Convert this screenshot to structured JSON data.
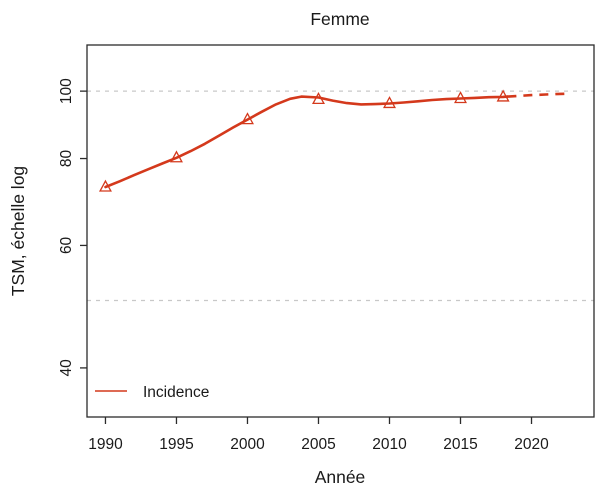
{
  "figure": {
    "title": "Femme",
    "xlabel": "Année",
    "ylabel": "TSM, échelle log",
    "legend": {
      "label": "Incidence"
    }
  },
  "colors": {
    "line": "#D4391C",
    "grid": "#C8C8C8",
    "axis": "#2B2B2B",
    "text": "#1A1A1A",
    "background": "#FFFFFF"
  },
  "chart_data": {
    "type": "line",
    "title": "Femme",
    "xlabel": "Année",
    "ylabel": "TSM, échelle log",
    "y_scale": "log",
    "grid": "dashed-horizontal",
    "x_ticks": [
      1990,
      1995,
      2000,
      2005,
      2010,
      2015,
      2020
    ],
    "y_ticks": [
      40,
      60,
      80,
      100
    ],
    "x_domain": [
      1988.7,
      2024.4
    ],
    "y_domain": [
      34,
      116.5
    ],
    "gridlines_y": [
      50,
      100
    ],
    "legend": {
      "entries": [
        "Incidence"
      ],
      "position": "bottom-left"
    },
    "series": [
      {
        "name": "Incidence",
        "marker": "open-triangle",
        "observed_points": {
          "years": [
            1990,
            1995,
            2000,
            2005,
            2010,
            2015,
            2018
          ],
          "values": [
            72.8,
            80.2,
            91.0,
            97.3,
            96.0,
            97.6,
            98.1
          ]
        },
        "fitted_curve": {
          "years": [
            1990,
            1991,
            1992,
            1993,
            1994,
            1995,
            1996,
            1997,
            1998,
            1999,
            2000,
            2001,
            2002,
            2003,
            2003.8,
            2005,
            2006,
            2007,
            2008,
            2009,
            2010,
            2011,
            2012,
            2013,
            2014,
            2015,
            2016,
            2017,
            2018,
            2018.3
          ],
          "values": [
            72.8,
            74.2,
            75.7,
            77.2,
            78.7,
            80.2,
            82.0,
            84.0,
            86.3,
            88.7,
            91.0,
            93.4,
            95.7,
            97.5,
            98.2,
            97.9,
            96.9,
            96.1,
            95.7,
            95.8,
            96.0,
            96.3,
            96.7,
            97.1,
            97.4,
            97.6,
            97.8,
            98.0,
            98.1,
            98.2
          ]
        },
        "projection": {
          "style": "dashed",
          "years": [
            2018.3,
            2019,
            2020,
            2021,
            2022,
            2022.7
          ],
          "values": [
            98.2,
            98.4,
            98.7,
            98.9,
            99.1,
            99.2
          ]
        }
      }
    ]
  }
}
